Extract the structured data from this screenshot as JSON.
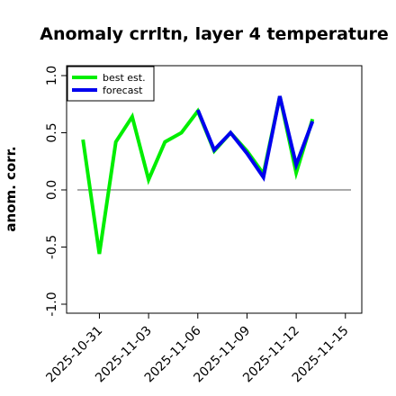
{
  "chart_data": {
    "type": "line",
    "title": "Anomaly crrltn, layer 4 temperature",
    "xlabel": "",
    "ylabel": "anom. corr.",
    "ylim": [
      -1.0,
      1.0
    ],
    "xlim": [
      "2025-10-29",
      "2025-11-16"
    ],
    "yticks": [
      -1.0,
      -0.5,
      0.0,
      0.5,
      1.0
    ],
    "ytick_labels": [
      "-1.0",
      "-0.5",
      "0.0",
      "0.5",
      "1.0"
    ],
    "xticks": [
      "2025-10-31",
      "2025-11-03",
      "2025-11-06",
      "2025-11-09",
      "2025-11-12",
      "2025-11-15"
    ],
    "highlight_xtick": "2025-11-06",
    "highlight_color": "#228B22",
    "reference_line": 0.0,
    "legend_position": "top-left",
    "series": [
      {
        "name": "best est.",
        "color": "#00ee00",
        "x": [
          "2025-10-30",
          "2025-10-31",
          "2025-11-01",
          "2025-11-02",
          "2025-11-03",
          "2025-11-04",
          "2025-11-05",
          "2025-11-06",
          "2025-11-07",
          "2025-11-08",
          "2025-11-09",
          "2025-11-10",
          "2025-11-11",
          "2025-11-12",
          "2025-11-13"
        ],
        "values": [
          0.44,
          -0.56,
          0.42,
          0.64,
          0.09,
          0.42,
          0.5,
          0.69,
          0.34,
          0.5,
          0.34,
          0.14,
          0.82,
          0.15,
          0.62
        ]
      },
      {
        "name": "forecast",
        "color": "#0000ee",
        "x": [
          "2025-11-06",
          "2025-11-07",
          "2025-11-08",
          "2025-11-09",
          "2025-11-10",
          "2025-11-11",
          "2025-11-12",
          "2025-11-13"
        ],
        "values": [
          0.7,
          0.35,
          0.5,
          0.32,
          0.11,
          0.82,
          0.22,
          0.6
        ]
      }
    ]
  }
}
